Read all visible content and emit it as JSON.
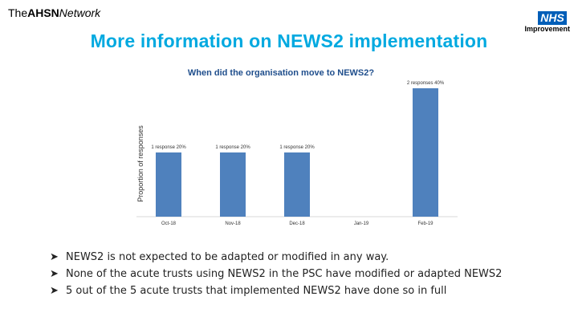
{
  "header": {
    "logo_prefix": "The",
    "logo_bold": "AHSN",
    "logo_suffix": "Network",
    "nhs_badge": "NHS",
    "nhs_subtitle": "Improvement"
  },
  "page": {
    "title": "More information on NEWS2 implementation"
  },
  "chart_data": {
    "type": "bar",
    "title": "When did the organisation move to NEWS2?",
    "ylabel": "Proportion of responses",
    "xlabel": "",
    "categories": [
      "Oct-18",
      "Nov-18",
      "Dec-18",
      "Jan-19",
      "Feb-19"
    ],
    "values": [
      20,
      20,
      20,
      0,
      40
    ],
    "data_labels": [
      "1 response 20%",
      "1 response 20%",
      "1 response 20%",
      "",
      "2 responses 40%"
    ],
    "ylim": [
      0,
      40
    ],
    "grid": false,
    "legend": "none",
    "bar_color": "#4f81bd"
  },
  "bullets": [
    "NEWS2 is not expected to be adapted or modified in any way.",
    "None of the acute trusts using NEWS2 in the PSC have modified or adapted NEWS2",
    "5 out of the 5 acute trusts that implemented NEWS2 have done so in full"
  ],
  "colors": {
    "title": "#00a9e0",
    "chart_title": "#1f4e8c",
    "nhs_blue": "#005eb8"
  }
}
